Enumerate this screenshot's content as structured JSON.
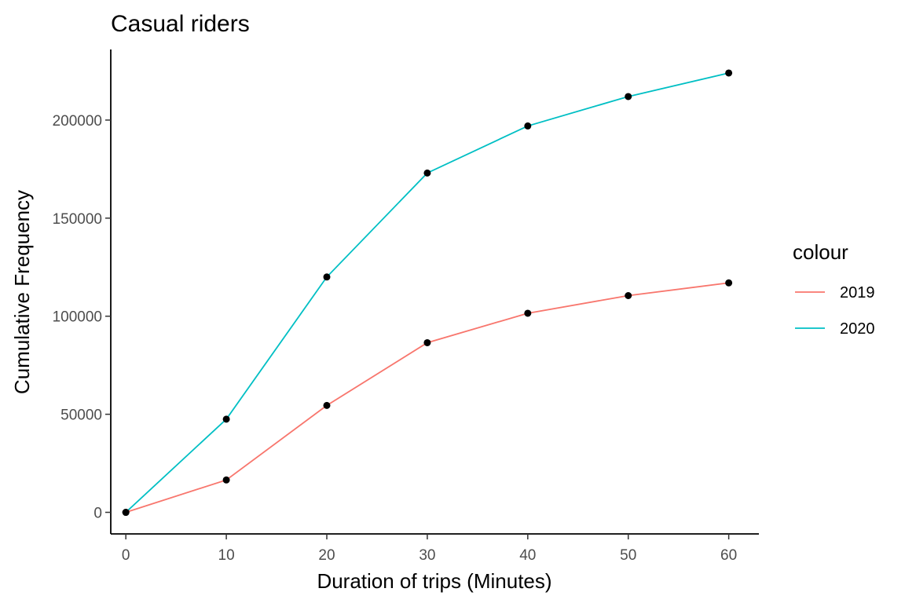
{
  "chart_data": {
    "type": "line",
    "title": "Casual riders",
    "xlabel": "Duration of trips (Minutes)",
    "ylabel": "Cumulative Frequency",
    "x": [
      0,
      10,
      20,
      30,
      40,
      50,
      60
    ],
    "xticks": [
      0,
      10,
      20,
      30,
      40,
      50,
      60
    ],
    "yticks": [
      0,
      50000,
      100000,
      150000,
      200000
    ],
    "xlim": [
      -1.5,
      63
    ],
    "ylim": [
      -11000,
      236000
    ],
    "grid": false,
    "markers": true,
    "marker_color": "#000000",
    "legend": {
      "title": "colour",
      "position": "right"
    },
    "series": [
      {
        "name": "2019",
        "color": "#F8766D",
        "values": [
          0,
          16500,
          54500,
          86500,
          101500,
          110500,
          117000
        ]
      },
      {
        "name": "2020",
        "color": "#00BFC4",
        "values": [
          0,
          47500,
          120000,
          173000,
          197000,
          212000,
          224000
        ]
      }
    ]
  }
}
